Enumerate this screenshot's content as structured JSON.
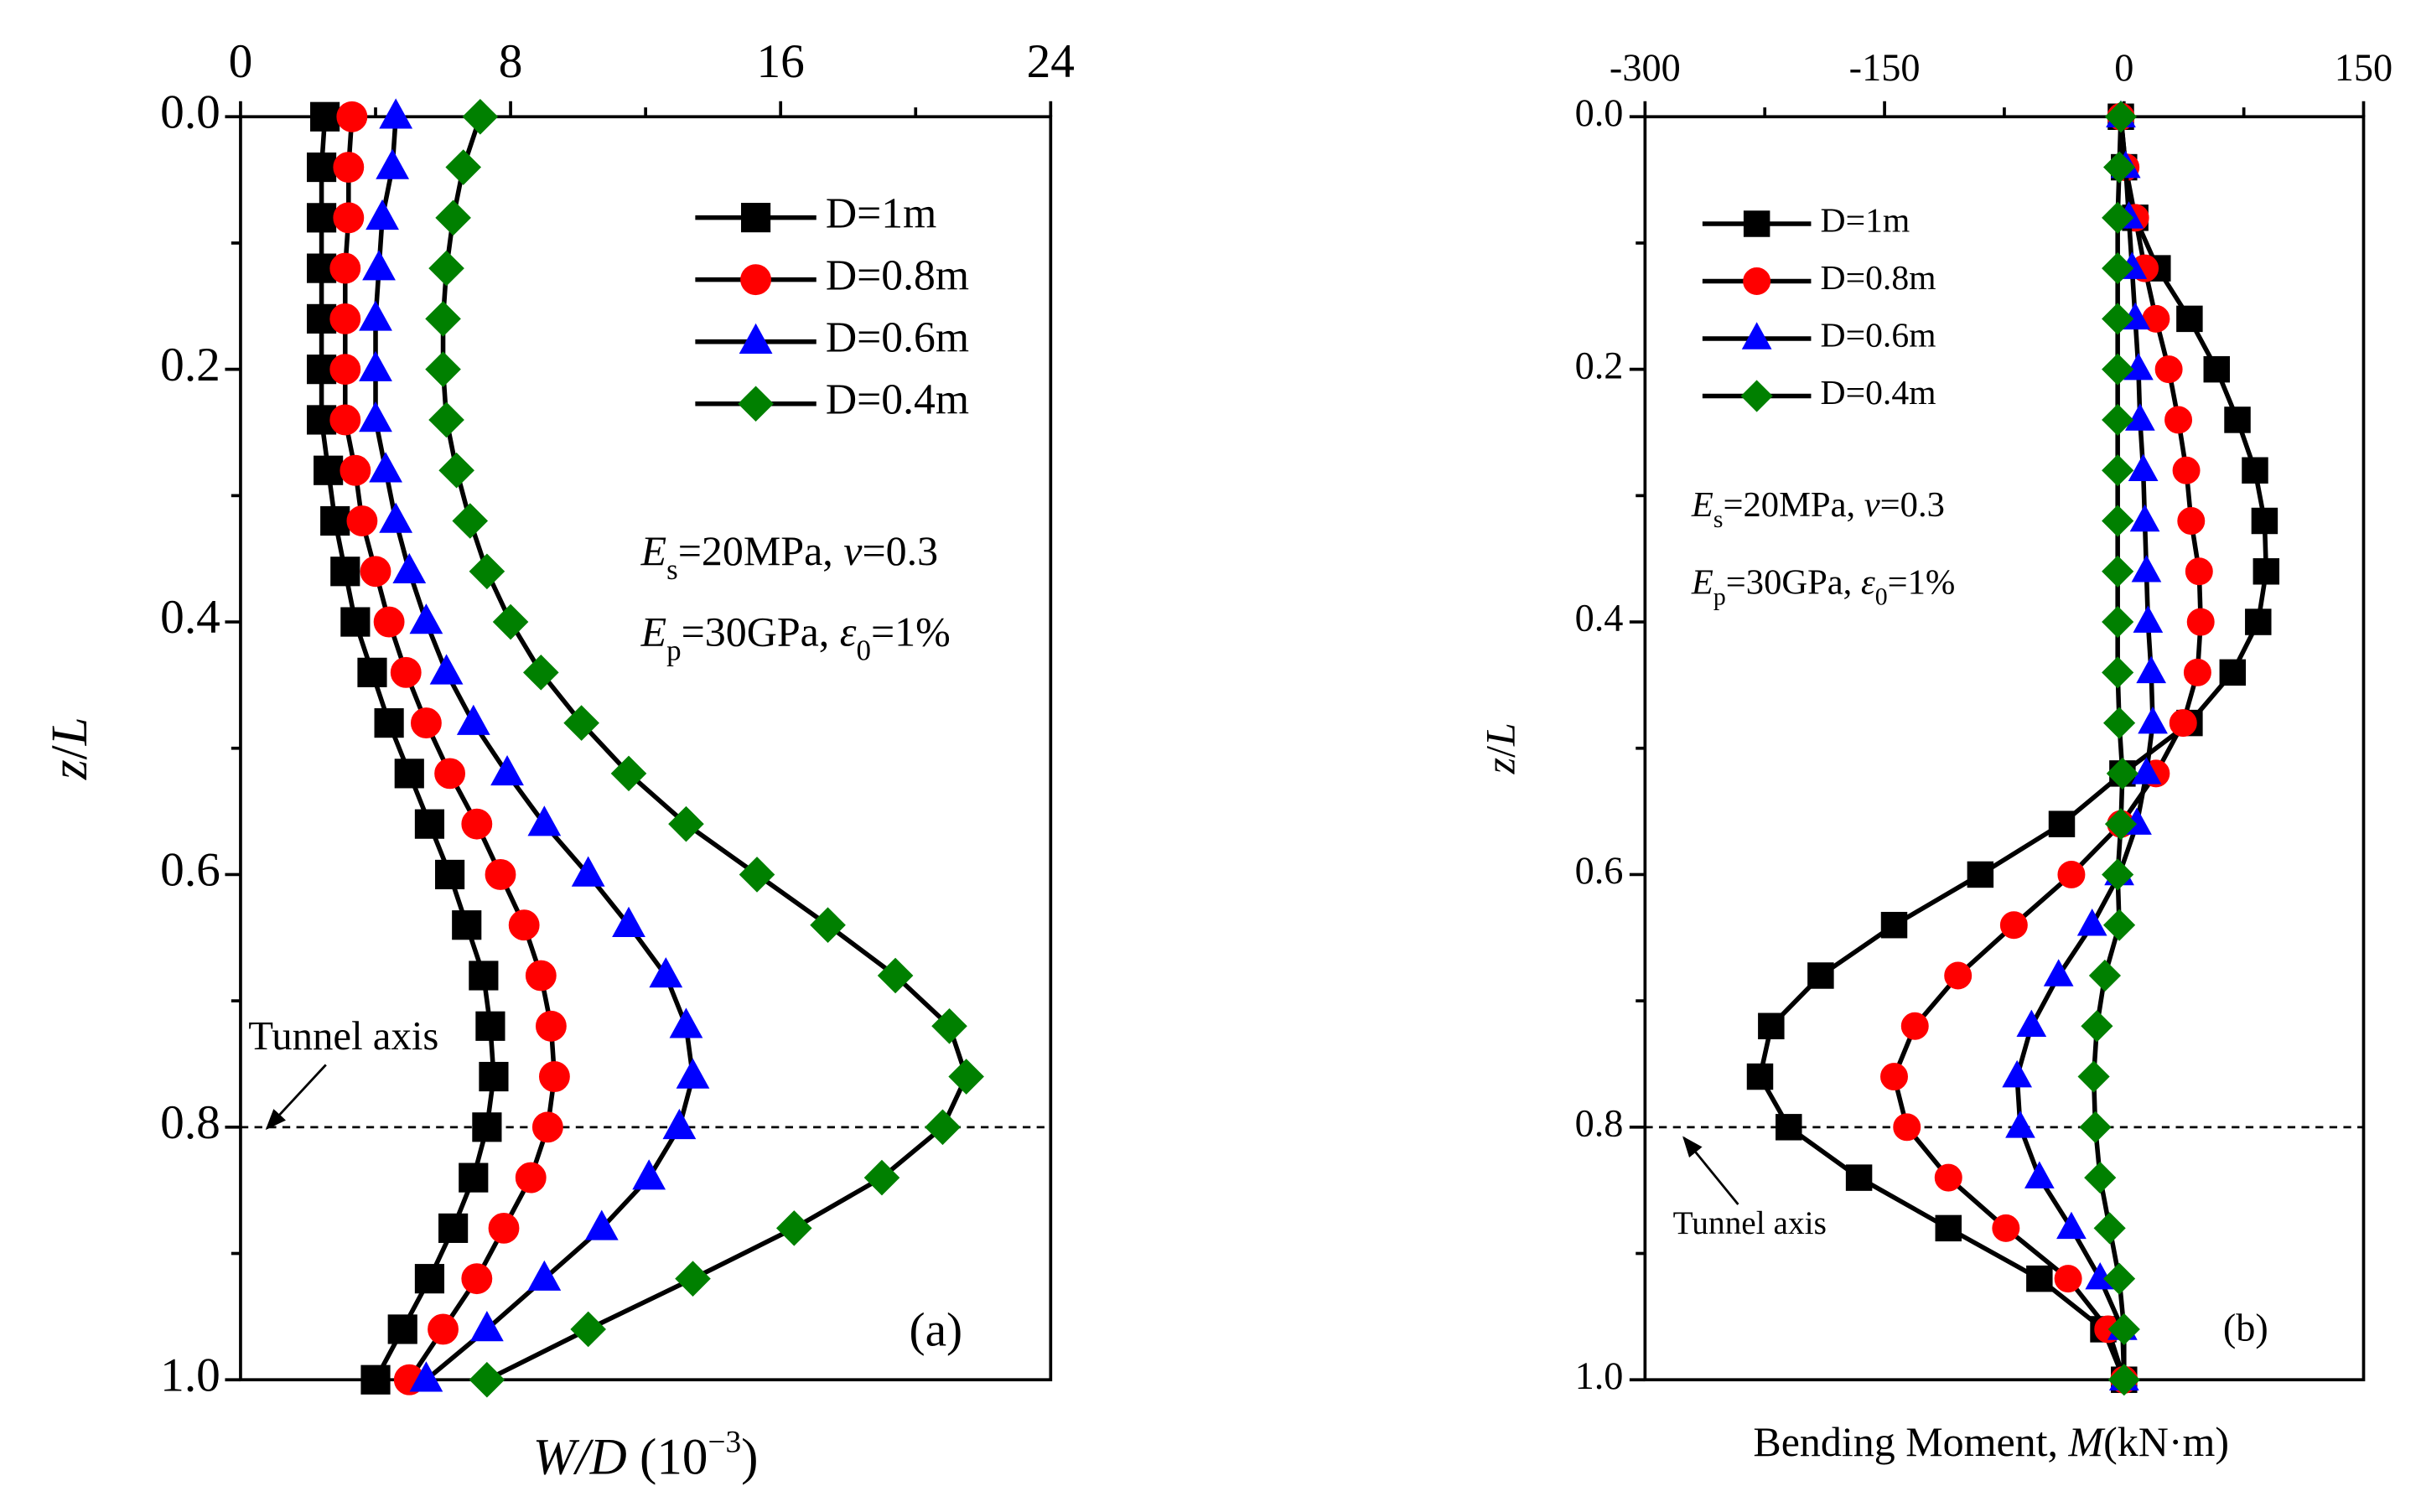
{
  "chart_data": [
    {
      "type": "line",
      "xtick_side": "top",
      "y_inverted": true,
      "xlabel_parts": [
        "W/D",
        " (10",
        "−3",
        ")"
      ],
      "ylabel_parts": [
        "z",
        "/",
        "L"
      ],
      "xlim": [
        0,
        24
      ],
      "xticks": [
        0,
        8,
        16,
        24
      ],
      "ylim": [
        0,
        1
      ],
      "yticks": [
        {
          "value": 0,
          "label": "0.0"
        },
        0.2,
        0.4,
        0.6,
        0.8,
        {
          "value": 1,
          "label": "1.0"
        }
      ],
      "y": [
        0,
        0.04,
        0.08,
        0.12,
        0.16,
        0.2,
        0.24,
        0.28,
        0.32,
        0.36,
        0.4,
        0.44,
        0.48,
        0.52,
        0.56,
        0.6,
        0.64,
        0.68,
        0.72,
        0.76,
        0.8,
        0.84,
        0.88,
        0.92,
        0.96,
        1
      ],
      "line_color": "#000000",
      "series": [
        {
          "name": "D=1m",
          "color": "#000000",
          "marker": "square",
          "values": [
            2.5,
            2.4,
            2.4,
            2.4,
            2.4,
            2.4,
            2.4,
            2.6,
            2.8,
            3.1,
            3.4,
            3.9,
            4.4,
            5.0,
            5.6,
            6.2,
            6.7,
            7.2,
            7.4,
            7.5,
            7.3,
            6.9,
            6.3,
            5.6,
            4.8,
            4.0
          ]
        },
        {
          "name": "D=0.8m",
          "color": "#ff0000",
          "marker": "circle",
          "values": [
            3.3,
            3.2,
            3.2,
            3.1,
            3.1,
            3.1,
            3.1,
            3.4,
            3.6,
            4.0,
            4.4,
            4.9,
            5.5,
            6.2,
            7.0,
            7.7,
            8.4,
            8.9,
            9.2,
            9.3,
            9.1,
            8.6,
            7.8,
            7.0,
            6.0,
            5.0
          ]
        },
        {
          "name": "D=0.6m",
          "color": "#0000ff",
          "marker": "triangle",
          "values": [
            4.6,
            4.5,
            4.2,
            4.1,
            4.0,
            4.0,
            4.0,
            4.3,
            4.6,
            5.0,
            5.5,
            6.1,
            6.9,
            7.9,
            9.0,
            10.3,
            11.5,
            12.6,
            13.2,
            13.4,
            13.0,
            12.1,
            10.7,
            9.0,
            7.3,
            5.5
          ]
        },
        {
          "name": "D=0.4m",
          "color": "#008000",
          "marker": "diamond",
          "values": [
            7.1,
            6.6,
            6.3,
            6.1,
            6.0,
            6.0,
            6.1,
            6.4,
            6.8,
            7.3,
            8.0,
            8.9,
            10.1,
            11.5,
            13.2,
            15.3,
            17.4,
            19.4,
            21.0,
            21.5,
            20.8,
            19.0,
            16.4,
            13.4,
            10.3,
            7.3
          ]
        }
      ],
      "annotation_lines": [
        [
          "E",
          "s",
          "=20MPa, ",
          "v",
          "=0.3"
        ],
        [
          "E",
          "p",
          "=30GPa, ",
          "ε",
          "0",
          "=1%"
        ]
      ],
      "tunnel_axis": 0.8,
      "tunnel_label": "Tunnel axis",
      "panel_label": "(a)"
    },
    {
      "type": "line",
      "xtick_side": "top",
      "y_inverted": true,
      "xlabel_parts": [
        "Bending Moment, ",
        "M",
        "(kN·m)"
      ],
      "ylabel_parts": [
        "z",
        "/",
        "L"
      ],
      "xlim": [
        -300,
        150
      ],
      "xticks": [
        -300,
        -150,
        0,
        150
      ],
      "ylim": [
        0,
        1
      ],
      "yticks": [
        {
          "value": 0,
          "label": "0.0"
        },
        0.2,
        0.4,
        0.6,
        0.8,
        {
          "value": 1,
          "label": "1.0"
        }
      ],
      "y": [
        0,
        0.04,
        0.08,
        0.12,
        0.16,
        0.2,
        0.24,
        0.28,
        0.32,
        0.36,
        0.4,
        0.44,
        0.48,
        0.52,
        0.56,
        0.6,
        0.64,
        0.68,
        0.72,
        0.76,
        0.8,
        0.84,
        0.88,
        0.92,
        0.96,
        1
      ],
      "line_color": "#000000",
      "series": [
        {
          "name": "D=1m",
          "color": "#000000",
          "marker": "square",
          "values": [
            -2,
            0,
            7,
            21,
            41,
            58,
            71,
            82,
            88,
            89,
            84,
            68,
            41,
            -1,
            -39,
            -90,
            -144,
            -190,
            -221,
            -228,
            -210,
            -166,
            -110,
            -53,
            -13,
            0
          ]
        },
        {
          "name": "D=0.8m",
          "color": "#ff0000",
          "marker": "circle",
          "values": [
            -2,
            1,
            7,
            13,
            20,
            28,
            34,
            39,
            42,
            47,
            48,
            46,
            37,
            20,
            -2,
            -33,
            -69,
            -104,
            -131,
            -144,
            -136,
            -110,
            -74,
            -35,
            -10,
            0
          ]
        },
        {
          "name": "D=0.6m",
          "color": "#0000ff",
          "marker": "triangle",
          "values": [
            -2,
            1,
            3,
            5,
            7,
            9,
            10,
            12,
            13,
            14,
            15,
            17,
            18,
            14,
            8,
            -3,
            -20,
            -41,
            -58,
            -67,
            -65,
            -53,
            -33,
            -15,
            -1,
            0
          ]
        },
        {
          "name": "D=0.4m",
          "color": "#008000",
          "marker": "diamond",
          "values": [
            -2,
            -3,
            -4,
            -4,
            -4,
            -4,
            -4,
            -4,
            -4,
            -4,
            -4,
            -4,
            -3,
            -1,
            -2,
            -4,
            -3,
            -12,
            -17,
            -19,
            -18,
            -15,
            -9,
            -3,
            0,
            0
          ]
        }
      ],
      "annotation_lines": [
        [
          "E",
          "s",
          "=20MPa, ",
          "v",
          "=0.3"
        ],
        [
          "E",
          "p",
          "=30GPa, ",
          "ε",
          "0",
          "=1%"
        ]
      ],
      "tunnel_axis": 0.8,
      "tunnel_label": "Tunnel axis",
      "panel_label": "(b)"
    }
  ]
}
